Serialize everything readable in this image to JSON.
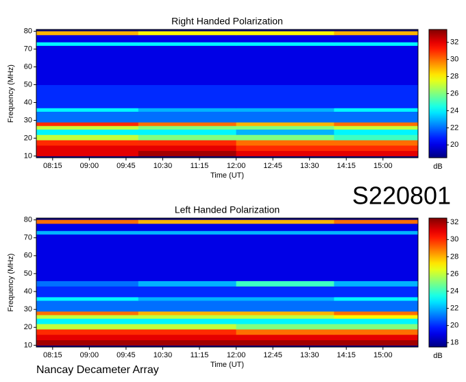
{
  "header": {
    "code": "S220801"
  },
  "footer": {
    "source": "Nancay Decameter Array"
  },
  "chart_data": [
    {
      "type": "heatmap",
      "title": "Right Handed Polarization",
      "xlabel": "Time (UT)",
      "ylabel": "Frequency (MHz)",
      "colorbar_label": "dB",
      "colormap": "jet",
      "xlim": [
        475,
        943
      ],
      "ylim": [
        9,
        81
      ],
      "xticks": [
        {
          "value": 495,
          "label": "08:15"
        },
        {
          "value": 540,
          "label": "09:00"
        },
        {
          "value": 585,
          "label": "09:45"
        },
        {
          "value": 630,
          "label": "10:30"
        },
        {
          "value": 675,
          "label": "11:15"
        },
        {
          "value": 720,
          "label": "12:00"
        },
        {
          "value": 765,
          "label": "12:45"
        },
        {
          "value": 810,
          "label": "13:30"
        },
        {
          "value": 855,
          "label": "14:15"
        },
        {
          "value": 900,
          "label": "15:00"
        }
      ],
      "yticks": [
        10,
        20,
        30,
        40,
        50,
        60,
        70,
        80
      ],
      "clim": [
        18.5,
        33.5
      ],
      "cticks": [
        20,
        22,
        24,
        26,
        28,
        30,
        32
      ],
      "xbins": [
        475,
        600,
        720,
        840,
        943
      ],
      "ybins": [
        10,
        13,
        16,
        19,
        22,
        25,
        27,
        29,
        35,
        37,
        50,
        72,
        74,
        78,
        80
      ],
      "values": [
        [
          32,
          33,
          32,
          32
        ],
        [
          32,
          32,
          31,
          31
        ],
        [
          31,
          31,
          30,
          30
        ],
        [
          27,
          26,
          26,
          25
        ],
        [
          24,
          24,
          23,
          24
        ],
        [
          27,
          26,
          26,
          27
        ],
        [
          31,
          30,
          29,
          30
        ],
        [
          22,
          22,
          22,
          22
        ],
        [
          24,
          23,
          23,
          24
        ],
        [
          21,
          21,
          21,
          21
        ],
        [
          20,
          20,
          20,
          20
        ],
        [
          24,
          24,
          24,
          24
        ],
        [
          20,
          20,
          20,
          20
        ],
        [
          29,
          28,
          28,
          29
        ]
      ]
    },
    {
      "type": "heatmap",
      "title": "Left Handed Polarization",
      "xlabel": "Time (UT)",
      "ylabel": "Frequency (MHz)",
      "colorbar_label": "dB",
      "colormap": "jet",
      "xlim": [
        475,
        943
      ],
      "ylim": [
        9,
        81
      ],
      "xticks": [
        {
          "value": 495,
          "label": "08:15"
        },
        {
          "value": 540,
          "label": "09:00"
        },
        {
          "value": 585,
          "label": "09:45"
        },
        {
          "value": 630,
          "label": "10:30"
        },
        {
          "value": 675,
          "label": "11:15"
        },
        {
          "value": 720,
          "label": "12:00"
        },
        {
          "value": 765,
          "label": "12:45"
        },
        {
          "value": 810,
          "label": "13:30"
        },
        {
          "value": 855,
          "label": "14:15"
        },
        {
          "value": 900,
          "label": "15:00"
        }
      ],
      "yticks": [
        10,
        20,
        30,
        40,
        50,
        60,
        70,
        80
      ],
      "clim": [
        17.5,
        32.5
      ],
      "cticks": [
        18,
        20,
        22,
        24,
        26,
        28,
        30,
        32
      ],
      "xbins": [
        475,
        600,
        720,
        840,
        943
      ],
      "ybins": [
        10,
        13,
        16,
        19,
        22,
        25,
        27,
        29,
        35,
        37,
        43,
        46,
        72,
        74,
        78,
        80
      ],
      "values": [
        [
          32,
          32,
          32,
          32
        ],
        [
          31,
          31,
          31,
          31
        ],
        [
          30,
          30,
          29,
          29
        ],
        [
          26,
          26,
          25,
          25
        ],
        [
          23,
          23,
          23,
          23
        ],
        [
          26,
          26,
          26,
          27
        ],
        [
          29,
          28,
          28,
          29
        ],
        [
          21,
          21,
          21,
          21
        ],
        [
          23,
          22,
          22,
          23
        ],
        [
          20,
          20,
          20,
          20
        ],
        [
          21,
          22,
          24,
          22
        ],
        [
          19,
          19,
          19,
          19
        ],
        [
          22,
          22,
          22,
          22
        ],
        [
          19,
          19,
          19,
          19
        ],
        [
          29,
          28,
          28,
          29
        ]
      ]
    }
  ]
}
